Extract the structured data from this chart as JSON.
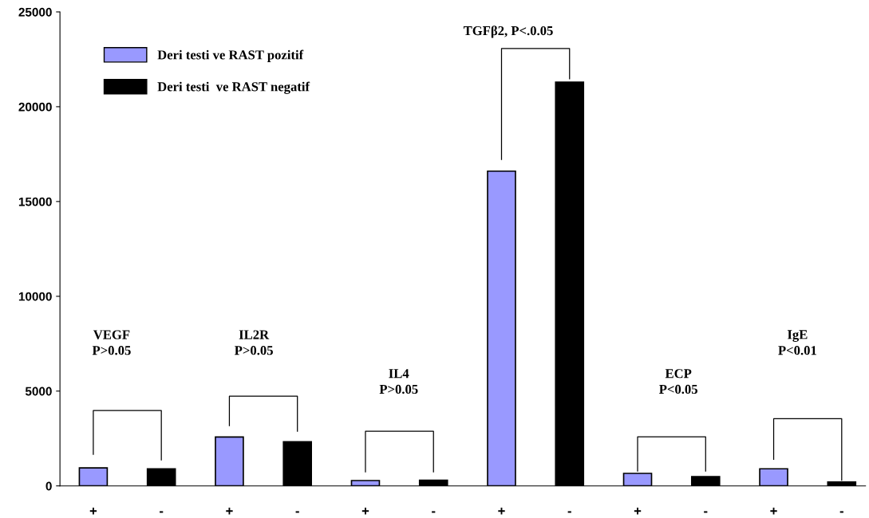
{
  "chart_data": {
    "type": "bar",
    "categories": [
      "+",
      "-",
      "+",
      "-",
      "+",
      "-",
      "+",
      "-",
      "+",
      "-",
      "+",
      "-"
    ],
    "series": [
      {
        "name": "Deri testi ve RAST pozitif",
        "color": "#9999ff",
        "values": [
          950,
          null,
          2580,
          null,
          280,
          null,
          16600,
          null,
          660,
          null,
          900,
          null
        ]
      },
      {
        "name": "Deri testi  ve RAST negatif",
        "color": "#000000",
        "values": [
          null,
          900,
          null,
          2330,
          null,
          300,
          null,
          21300,
          null,
          490,
          null,
          200
        ]
      }
    ],
    "ylim": [
      0,
      25000
    ],
    "yticks": [
      0,
      5000,
      10000,
      15000,
      20000,
      25000
    ],
    "grid": false,
    "legend": "top left",
    "annotations": [
      "VEGF\nP>0.05",
      "IL2R\nP>0.05",
      "IL4\nP>0.05",
      "TGFβ2, P<.0.05",
      "ECP\nP<0.05",
      "IgE\nP<0.01"
    ]
  }
}
